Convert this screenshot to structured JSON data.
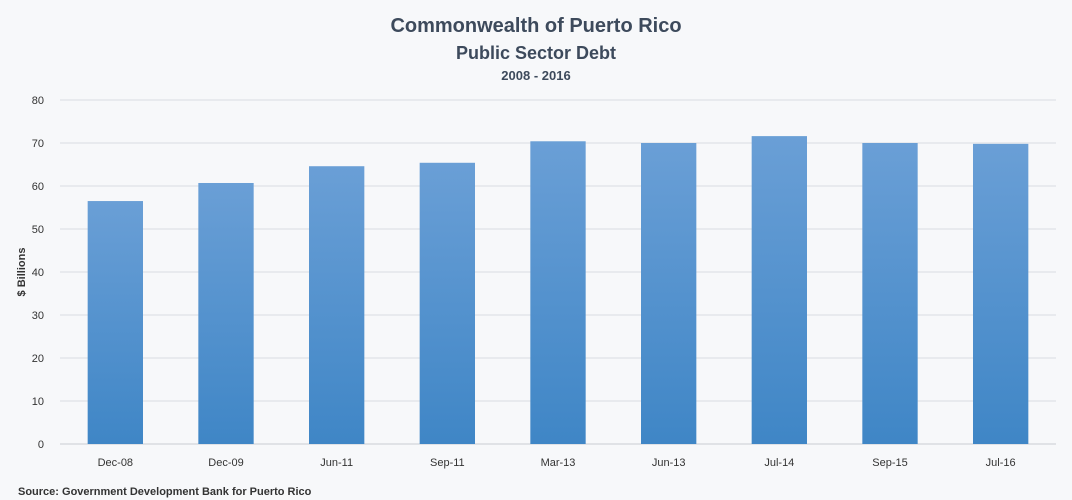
{
  "chart_data": {
    "type": "bar",
    "title": "Commonwealth of Puerto Rico",
    "subtitle": "Public Sector Debt",
    "subsubtitle": "2008 - 2016",
    "xlabel": "",
    "ylabel": "$ Billions",
    "source": "Source: Government Development Bank for Puerto Rico",
    "categories": [
      "Dec-08",
      "Dec-09",
      "Jun-11",
      "Sep-11",
      "Mar-13",
      "Jun-13",
      "Jul-14",
      "Sep-15",
      "Jul-16"
    ],
    "values": [
      56.5,
      60.7,
      64.6,
      65.4,
      70.4,
      70.0,
      71.6,
      70.0,
      69.8
    ],
    "ylim": [
      0,
      80
    ],
    "yticks": [
      0,
      10,
      20,
      30,
      40,
      50,
      60,
      70,
      80
    ],
    "grid": true,
    "legend": "none",
    "colors": {
      "bar_top": "#6a9fd6",
      "bar_bottom": "#3f86c6"
    }
  }
}
